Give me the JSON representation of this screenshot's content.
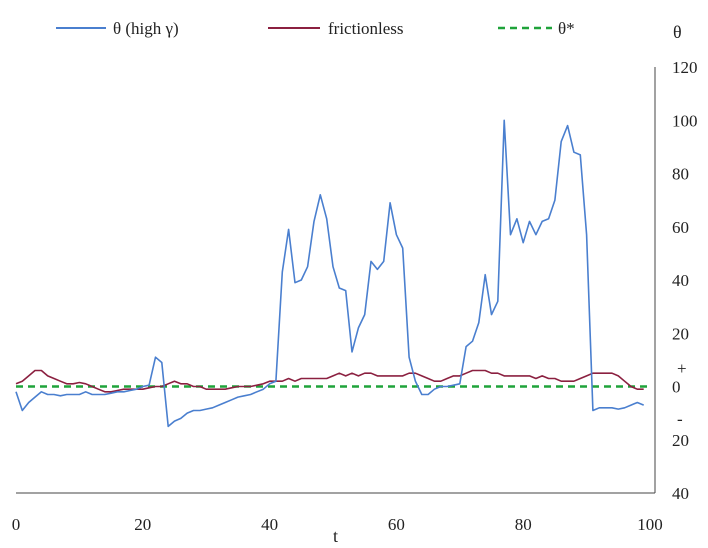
{
  "chart_data": {
    "type": "line",
    "title": "",
    "xlabel": "t",
    "ylabel": "θ",
    "xlim": [
      0,
      100
    ],
    "ylim": [
      -40,
      120
    ],
    "x_ticks": [
      "0",
      "20",
      "40",
      "60",
      "80",
      "100"
    ],
    "y_ticks": [
      {
        "value": 120,
        "label": "120"
      },
      {
        "value": 100,
        "label": "100"
      },
      {
        "value": 80,
        "label": "80"
      },
      {
        "value": 60,
        "label": "60"
      },
      {
        "value": 40,
        "label": "40"
      },
      {
        "value": 20,
        "label": "20"
      },
      {
        "value": 0,
        "label": "0"
      },
      {
        "value": -20,
        "label": "20"
      },
      {
        "value": -40,
        "label": "40"
      }
    ],
    "y_sign_marks": [
      {
        "value": 7,
        "label": "+"
      },
      {
        "value": -12,
        "label": "-"
      }
    ],
    "grid": false,
    "legend_position": "top",
    "series": [
      {
        "name": "θ (high γ)",
        "color": "#4a7fcf",
        "dash": "solid",
        "x": [
          0,
          1,
          2,
          3,
          4,
          5,
          6,
          7,
          8,
          9,
          10,
          11,
          12,
          13,
          14,
          15,
          16,
          17,
          18,
          19,
          20,
          21,
          22,
          23,
          24,
          25,
          26,
          27,
          28,
          29,
          30,
          31,
          32,
          33,
          34,
          35,
          36,
          37,
          38,
          39,
          40,
          41,
          42,
          43,
          44,
          45,
          46,
          47,
          48,
          49,
          50,
          51,
          52,
          53,
          54,
          55,
          56,
          57,
          58,
          59,
          60,
          61,
          62,
          63,
          64,
          65,
          66,
          67,
          68,
          69,
          70,
          71,
          72,
          73,
          74,
          75,
          76,
          77,
          78,
          79,
          80,
          81,
          82,
          83,
          84,
          85,
          86,
          87,
          88,
          89,
          90,
          91,
          92,
          93,
          94,
          95,
          96,
          97,
          98,
          99
        ],
        "y": [
          -2,
          -9,
          -6,
          -4,
          -2,
          -3,
          -3,
          -3.5,
          -3,
          -3,
          -3,
          -2,
          -3,
          -3,
          -3,
          -2.5,
          -2,
          -2,
          -1.5,
          -1,
          0,
          0.5,
          11,
          9,
          -15,
          -13,
          -12,
          -10,
          -9,
          -9,
          -8.5,
          -8,
          -7,
          -6,
          -5,
          -4,
          -3.5,
          -3,
          -2,
          -1,
          1,
          2,
          43,
          59,
          39,
          40,
          45,
          62,
          72,
          63,
          45,
          37,
          36,
          13,
          22,
          27,
          47,
          44,
          47,
          69,
          57,
          52,
          11,
          2,
          -3,
          -3,
          -1,
          0,
          0,
          0.5,
          1,
          15,
          17,
          24,
          42,
          27,
          32,
          100,
          57,
          63,
          54,
          62,
          57,
          62,
          63,
          70,
          92,
          98,
          88,
          87,
          57,
          -9,
          -8,
          -8,
          -8,
          -8.5,
          -8,
          -7,
          -6,
          -7
        ]
      },
      {
        "name": "frictionless",
        "color": "#8b2040",
        "dash": "solid",
        "x": [
          0,
          1,
          2,
          3,
          4,
          5,
          6,
          7,
          8,
          9,
          10,
          11,
          12,
          13,
          14,
          15,
          16,
          17,
          18,
          19,
          20,
          21,
          22,
          23,
          24,
          25,
          26,
          27,
          28,
          29,
          30,
          31,
          32,
          33,
          34,
          35,
          36,
          37,
          38,
          39,
          40,
          41,
          42,
          43,
          44,
          45,
          46,
          47,
          48,
          49,
          50,
          51,
          52,
          53,
          54,
          55,
          56,
          57,
          58,
          59,
          60,
          61,
          62,
          63,
          64,
          65,
          66,
          67,
          68,
          69,
          70,
          71,
          72,
          73,
          74,
          75,
          76,
          77,
          78,
          79,
          80,
          81,
          82,
          83,
          84,
          85,
          86,
          87,
          88,
          89,
          90,
          91,
          92,
          93,
          94,
          95,
          96,
          97,
          98,
          99
        ],
        "y": [
          1,
          2,
          4,
          6,
          6,
          4,
          3,
          2,
          1,
          1,
          1.5,
          1,
          0,
          -1,
          -2,
          -2,
          -1.5,
          -1,
          -1,
          -1,
          -1,
          -0.5,
          0,
          0,
          1,
          2,
          1,
          1,
          0,
          0,
          -1,
          -1,
          -1,
          -1,
          -0.5,
          0,
          0,
          0,
          0.5,
          1,
          2,
          2,
          2,
          3,
          2,
          3,
          3,
          3,
          3,
          3,
          4,
          5,
          4,
          5,
          4,
          5,
          5,
          4,
          4,
          4,
          4,
          4,
          5,
          5,
          4,
          3,
          2,
          2,
          3,
          4,
          4,
          5,
          6,
          6,
          6,
          5,
          5,
          4,
          4,
          4,
          4,
          4,
          3,
          4,
          3,
          3,
          2,
          2,
          2,
          3,
          4,
          5,
          5,
          5,
          5,
          4,
          2,
          0,
          -1,
          -1
        ]
      },
      {
        "name": "θ*",
        "color": "#1fa33a",
        "dash": "dashed",
        "x": [
          0,
          100
        ],
        "y": [
          0,
          0
        ]
      }
    ]
  }
}
